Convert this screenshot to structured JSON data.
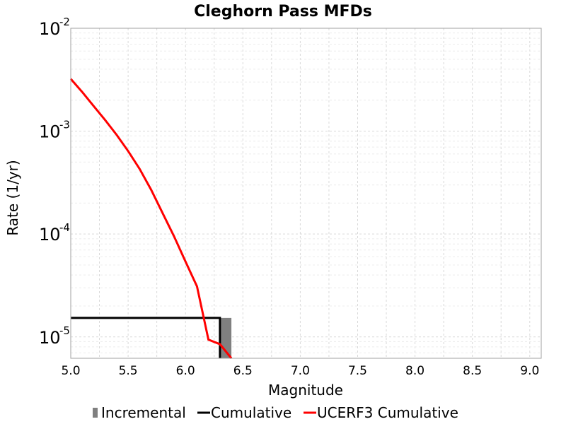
{
  "chart_data": {
    "type": "line",
    "title": "Cleghorn Pass MFDs",
    "xlabel": "Magnitude",
    "ylabel": "Rate (1/yr)",
    "xlim": [
      5.0,
      9.1
    ],
    "ylim": [
      6.2e-06,
      0.01
    ],
    "yscale": "log",
    "grid": true,
    "legend_position": "bottom",
    "x_ticks": [
      "5.0",
      "5.5",
      "6.0",
      "6.5",
      "7.0",
      "7.5",
      "8.0",
      "8.5",
      "9.0"
    ],
    "x_tick_values": [
      5.0,
      5.5,
      6.0,
      6.5,
      7.0,
      7.5,
      8.0,
      8.5,
      9.0
    ],
    "y_ticks": [
      {
        "value": 1e-05,
        "base": "10",
        "exp": "-5"
      },
      {
        "value": 0.0001,
        "base": "10",
        "exp": "-4"
      },
      {
        "value": 0.001,
        "base": "10",
        "exp": "-3"
      },
      {
        "value": 0.01,
        "base": "10",
        "exp": "-2"
      }
    ],
    "series": [
      {
        "name": "Incremental",
        "kind": "bar",
        "color": "#808080",
        "bars": [
          {
            "x0": 6.3,
            "x1": 6.4,
            "y": 1.53e-05
          }
        ]
      },
      {
        "name": "Cumulative",
        "kind": "step",
        "color": "#000000",
        "x": [
          5.0,
          6.3,
          6.3
        ],
        "y": [
          1.53e-05,
          1.53e-05,
          6.2e-06
        ]
      },
      {
        "name": "UCERF3 Cumulative",
        "kind": "line",
        "color": "#ff0000",
        "x": [
          5.0,
          5.1,
          5.2,
          5.3,
          5.4,
          5.5,
          5.6,
          5.7,
          5.8,
          5.9,
          6.0,
          6.1,
          6.2,
          6.3,
          6.4
        ],
        "y": [
          0.00322,
          0.0024,
          0.00175,
          0.00128,
          0.00092,
          0.00064,
          0.00043,
          0.00027,
          0.00016,
          9.5e-05,
          5.4e-05,
          3.1e-05,
          9.4e-06,
          8.5e-06,
          6.2e-06
        ]
      }
    ]
  }
}
